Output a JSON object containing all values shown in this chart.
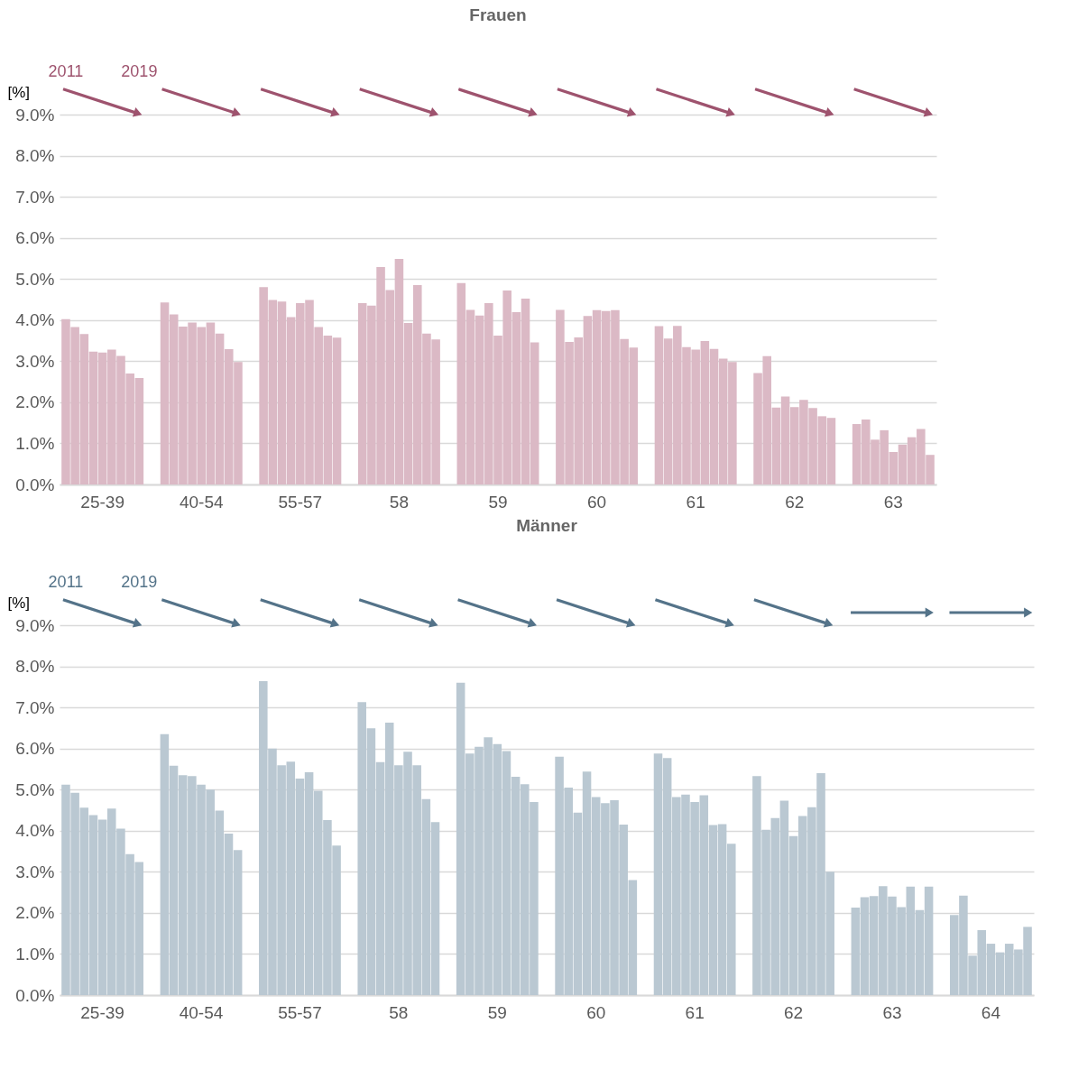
{
  "chart_data": [
    {
      "type": "bar",
      "title": "Frauen",
      "ylabel": "[%]",
      "categories": [
        "25-39",
        "40-54",
        "55-57",
        "58",
        "59",
        "60",
        "61",
        "62",
        "63"
      ],
      "series": [
        {
          "color": "#dbb9c5",
          "values": [
            4.02,
            4.43,
            4.8,
            4.41,
            4.9,
            4.25,
            3.85,
            2.71,
            1.47
          ]
        },
        {
          "color": "#dbb9c5",
          "values": [
            3.83,
            4.14,
            4.49,
            4.35,
            4.25,
            3.47,
            3.55,
            3.12,
            1.58
          ]
        },
        {
          "color": "#dbb9c5",
          "values": [
            3.66,
            3.84,
            4.45,
            5.29,
            4.11,
            3.58,
            3.86,
            1.87,
            1.09
          ]
        },
        {
          "color": "#dbb9c5",
          "values": [
            3.23,
            3.94,
            4.07,
            4.73,
            4.41,
            4.1,
            3.34,
            2.14,
            1.32
          ]
        },
        {
          "color": "#dbb9c5",
          "values": [
            3.21,
            3.83,
            4.41,
            5.49,
            3.62,
            4.24,
            3.28,
            1.88,
            0.79
          ]
        },
        {
          "color": "#dbb9c5",
          "values": [
            3.28,
            3.94,
            4.49,
            3.93,
            4.72,
            4.22,
            3.49,
            2.06,
            0.97
          ]
        },
        {
          "color": "#dbb9c5",
          "values": [
            3.13,
            3.67,
            3.83,
            4.85,
            4.19,
            4.24,
            3.3,
            1.86,
            1.15
          ]
        },
        {
          "color": "#dbb9c5",
          "values": [
            2.7,
            3.29,
            3.62,
            3.67,
            4.52,
            3.54,
            3.06,
            1.66,
            1.35
          ]
        },
        {
          "color": "#dbb9c5",
          "values": [
            2.59,
            2.98,
            3.57,
            3.53,
            3.46,
            3.33,
            2.98,
            1.62,
            0.72
          ]
        }
      ],
      "ylim": [
        0,
        9
      ],
      "yticks": [
        {
          "value": 0,
          "label": "0.0%"
        },
        {
          "value": 1,
          "label": "1.0%"
        },
        {
          "value": 2,
          "label": "2.0%"
        },
        {
          "value": 3,
          "label": "3.0%"
        },
        {
          "value": 4,
          "label": "4.0%"
        },
        {
          "value": 5,
          "label": "5.0%"
        },
        {
          "value": 6,
          "label": "6.0%"
        },
        {
          "value": 7,
          "label": "7.0%"
        },
        {
          "value": 8,
          "label": "8.0%"
        },
        {
          "value": 9,
          "label": "9.0%"
        }
      ],
      "grid": "y",
      "annotations": [
        "2011",
        "2019"
      ]
    },
    {
      "type": "bar",
      "title": "Männer",
      "ylabel": "[%]",
      "categories": [
        "25-39",
        "40-54",
        "55-57",
        "58",
        "59",
        "60",
        "61",
        "62",
        "63",
        "64"
      ],
      "series": [
        {
          "color": "#bac8d2",
          "values": [
            5.12,
            6.35,
            7.64,
            7.13,
            7.6,
            5.8,
            5.88,
            5.33,
            2.13,
            1.95
          ]
        },
        {
          "color": "#bac8d2",
          "values": [
            4.92,
            5.58,
            6.0,
            6.49,
            5.88,
            5.05,
            5.77,
            4.02,
            2.38,
            2.42
          ]
        },
        {
          "color": "#bac8d2",
          "values": [
            4.56,
            5.35,
            5.59,
            5.67,
            6.04,
            4.44,
            4.82,
            4.31,
            2.41,
            0.96
          ]
        },
        {
          "color": "#bac8d2",
          "values": [
            4.38,
            5.33,
            5.68,
            6.63,
            6.27,
            5.44,
            4.88,
            4.73,
            2.65,
            1.58
          ]
        },
        {
          "color": "#bac8d2",
          "values": [
            4.27,
            5.12,
            5.27,
            5.59,
            6.11,
            4.82,
            4.7,
            3.87,
            2.4,
            1.25
          ]
        },
        {
          "color": "#bac8d2",
          "values": [
            4.54,
            5.0,
            5.42,
            5.92,
            5.94,
            4.67,
            4.86,
            4.36,
            2.14,
            1.04
          ]
        },
        {
          "color": "#bac8d2",
          "values": [
            4.05,
            4.49,
            4.97,
            5.59,
            5.31,
            4.74,
            4.14,
            4.57,
            2.64,
            1.25
          ]
        },
        {
          "color": "#bac8d2",
          "values": [
            3.43,
            3.93,
            4.26,
            4.77,
            5.13,
            4.15,
            4.16,
            5.4,
            2.07,
            1.11
          ]
        },
        {
          "color": "#bac8d2",
          "values": [
            3.24,
            3.53,
            3.64,
            4.21,
            4.7,
            2.8,
            3.68,
            3.0,
            2.64,
            1.66
          ]
        }
      ],
      "ylim": [
        0,
        9
      ],
      "yticks": [
        {
          "value": 0,
          "label": "0.0%"
        },
        {
          "value": 1,
          "label": "1.0%"
        },
        {
          "value": 2,
          "label": "2.0%"
        },
        {
          "value": 3,
          "label": "3.0%"
        },
        {
          "value": 4,
          "label": "4.0%"
        },
        {
          "value": 5,
          "label": "5.0%"
        },
        {
          "value": 6,
          "label": "6.0%"
        },
        {
          "value": 7,
          "label": "7.0%"
        },
        {
          "value": 8,
          "label": "8.0%"
        },
        {
          "value": 9,
          "label": "9.0%"
        }
      ],
      "grid": "y",
      "annotations": [
        "2011",
        "2019"
      ]
    }
  ]
}
